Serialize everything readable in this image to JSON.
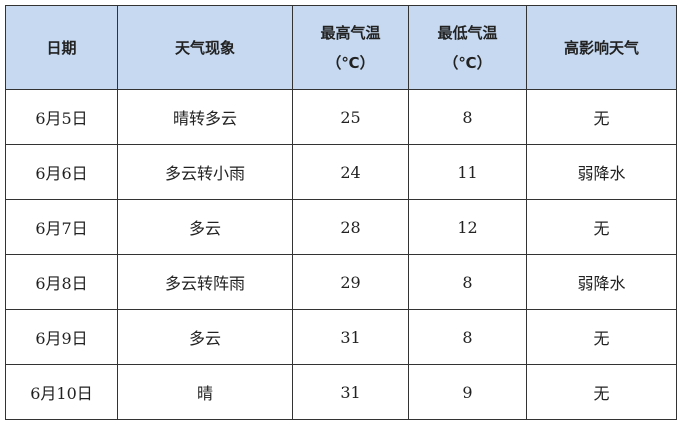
{
  "headers": [
    "日期",
    "天气现象",
    "最高气温",
    "（℃）",
    "最低气温",
    "（℃）",
    "高影响天气"
  ],
  "rows": [
    [
      "6月5日",
      "晴转多云",
      "25",
      "8",
      "无"
    ],
    [
      "6月6日",
      "多云转小雨",
      "24",
      "11",
      "弱降水"
    ],
    [
      "6月7日",
      "多云",
      "28",
      "12",
      "无"
    ],
    [
      "6月8日",
      "多云转阵雨",
      "29",
      "8",
      "弱降水"
    ],
    [
      "6月9日",
      "多云",
      "31",
      "8",
      "无"
    ],
    [
      "6月10日",
      "晴",
      "31",
      "9",
      "无"
    ]
  ],
  "colors": {
    "header_bg": "#c6d9f0"
  }
}
